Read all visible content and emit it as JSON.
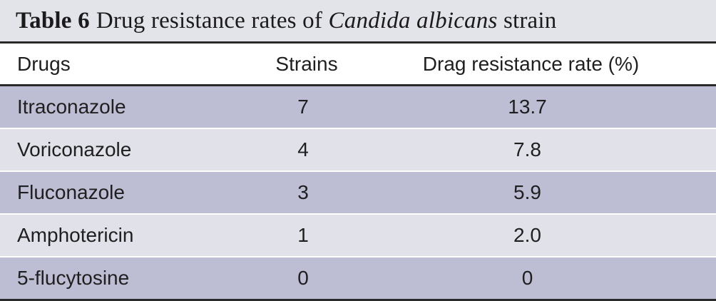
{
  "caption": {
    "label": "Table 6",
    "title_prefix": "Drug resistance rates of",
    "title_italic": "Candida albicans",
    "title_suffix": "strain"
  },
  "columns": [
    "Drugs",
    "Strains",
    "Drag resistance rate (%)"
  ],
  "rows": [
    {
      "drug": "Itraconazole",
      "strains": "7",
      "rate": "13.7"
    },
    {
      "drug": "Voriconazole",
      "strains": "4",
      "rate": "7.8"
    },
    {
      "drug": "Fluconazole",
      "strains": "3",
      "rate": "5.9"
    },
    {
      "drug": "Amphotericin",
      "strains": "1",
      "rate": "2.0"
    },
    {
      "drug": "5-flucytosine",
      "strains": "0",
      "rate": "0"
    }
  ],
  "colors": {
    "caption_bg": "#e3e3ea",
    "row_shaded": "#bdbdd3",
    "row_plain": "#e1e1ea",
    "rule": "#2a2a2a"
  }
}
